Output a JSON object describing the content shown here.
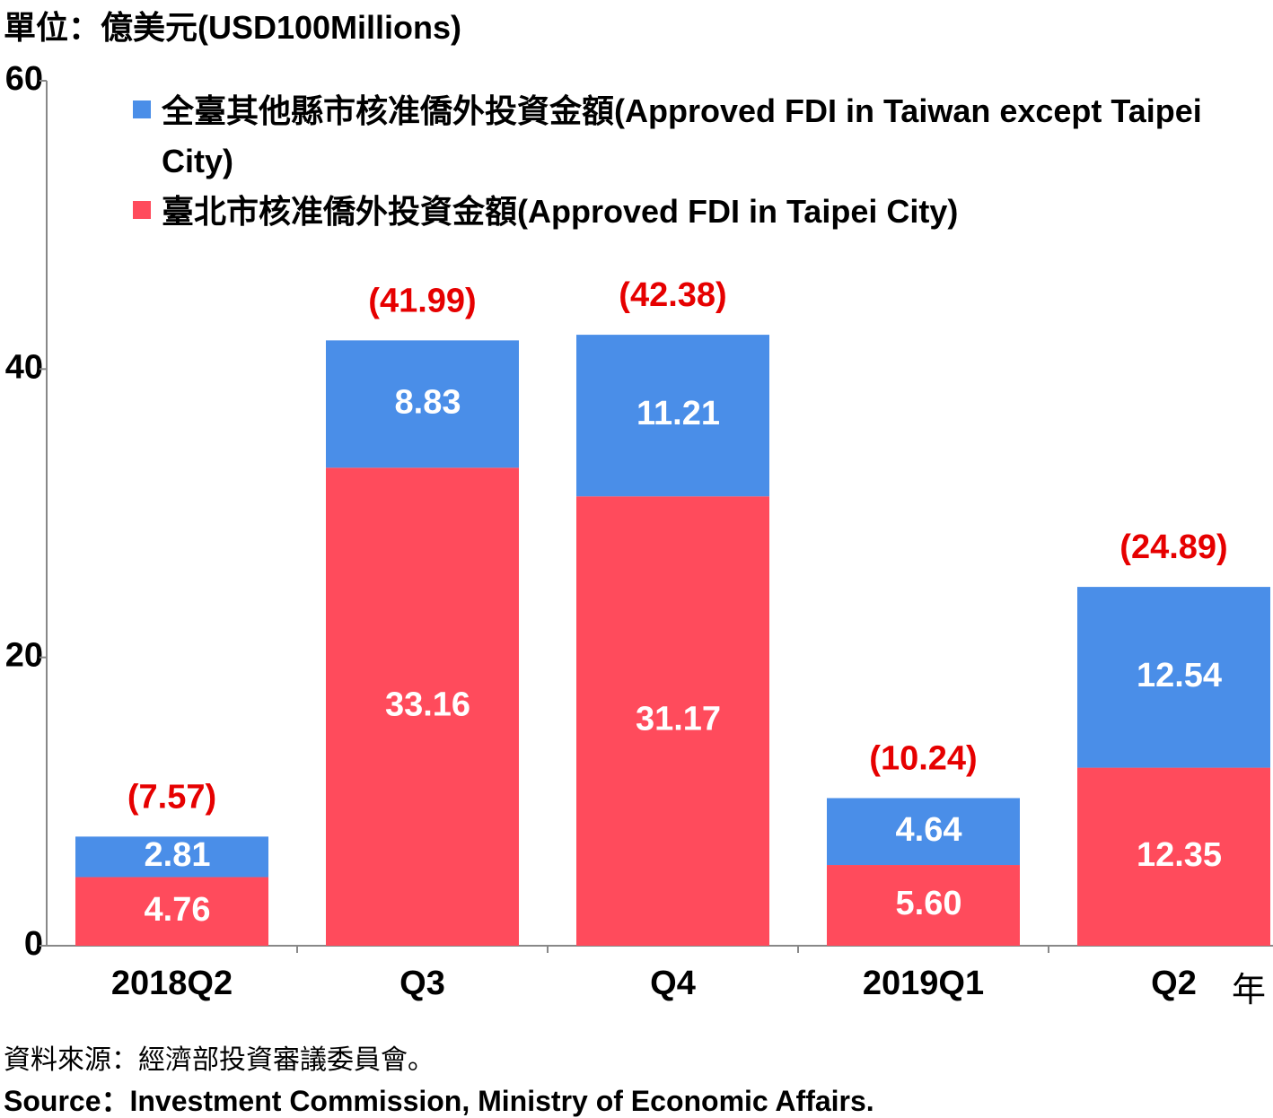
{
  "chart_data": {
    "type": "stacked_bar",
    "unit_label": "單位：億美元(USD100Millions)",
    "x_axis_suffix": "年",
    "categories": [
      "2018Q2",
      "Q3",
      "Q4",
      "2019Q1",
      "Q2"
    ],
    "series": [
      {
        "name": "臺北市核准僑外投資金額(Approved FDI in Taipei City)",
        "color": "#ff4b5c",
        "values": [
          4.76,
          33.16,
          31.17,
          5.6,
          12.35
        ],
        "value_labels": [
          "4.76",
          "33.16",
          "31.17",
          "5.60",
          "12.35"
        ]
      },
      {
        "name": "全臺其他縣市核准僑外投資金額(Approved FDI in Taiwan except Taipei City)",
        "color": "#4a8ee8",
        "values": [
          2.81,
          8.83,
          11.21,
          4.64,
          12.54
        ],
        "value_labels": [
          "2.81",
          "8.83",
          "11.21",
          "4.64",
          "12.54"
        ]
      }
    ],
    "totals": {
      "color": "#e60000",
      "values": [
        7.57,
        41.99,
        42.38,
        10.24,
        24.89
      ],
      "value_labels": [
        "(7.57)",
        "(41.99)",
        "(42.38)",
        "(10.24)",
        "(24.89)"
      ]
    },
    "ylim": [
      0,
      60
    ],
    "yticks": [
      0,
      20,
      40,
      60
    ],
    "source_zh": "資料來源：經濟部投資審議委員會。",
    "source_en": "Source：Investment Commission, Ministry of Economic Affairs."
  }
}
